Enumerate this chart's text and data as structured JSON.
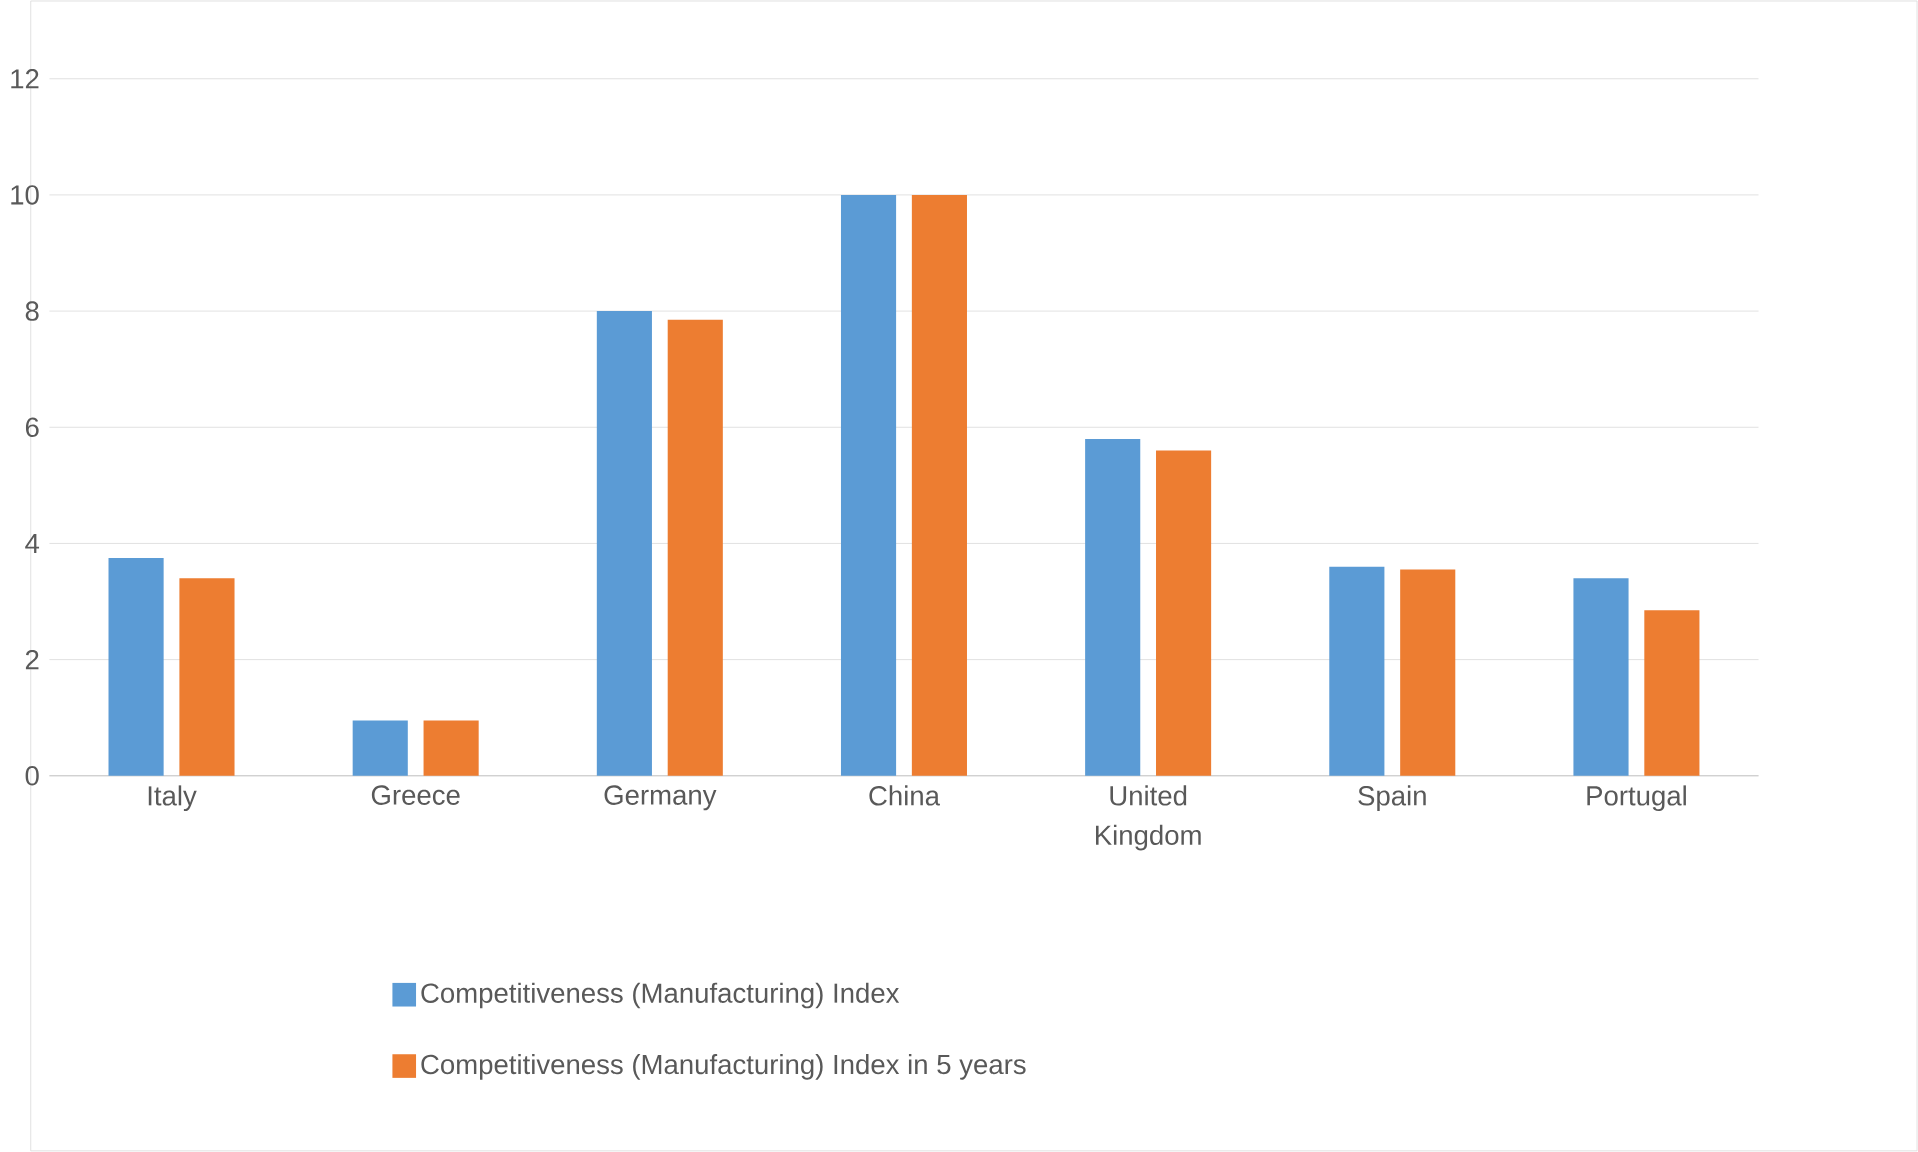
{
  "chart_data": {
    "type": "bar",
    "categories": [
      "Italy",
      "Greece",
      "Germany",
      "China",
      "United Kingdom",
      "Spain",
      "Portugal"
    ],
    "series": [
      {
        "name": "Competitiveness (Manufacturing) Index",
        "color": "#5b9bd5",
        "values": [
          3.75,
          0.95,
          8.0,
          10.0,
          5.8,
          3.6,
          3.4
        ]
      },
      {
        "name": "Competitiveness (Manufacturing) Index in 5 years",
        "color": "#ed7d31",
        "values": [
          3.4,
          0.95,
          7.85,
          10.0,
          5.6,
          3.55,
          2.85
        ]
      }
    ],
    "ylim": [
      0,
      12
    ],
    "yticks": [
      0,
      2,
      4,
      6,
      8,
      10,
      12
    ],
    "grid": "y",
    "legend": "bottom"
  }
}
